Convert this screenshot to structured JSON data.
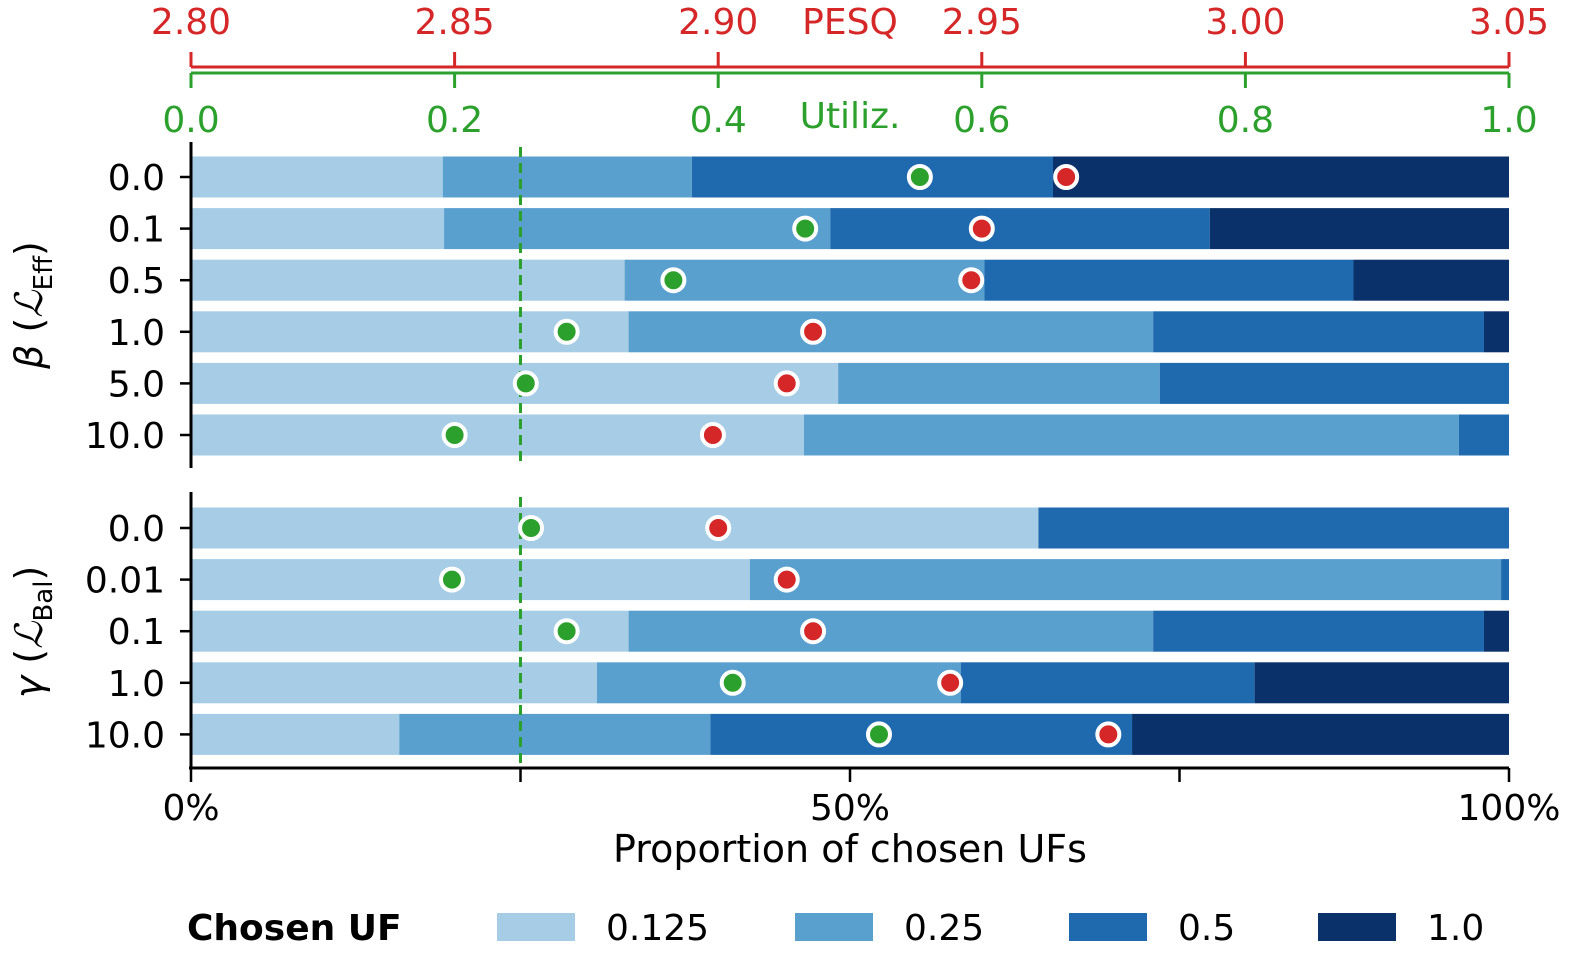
{
  "chart_data": {
    "type": "bar",
    "subtype": "stacked-horizontal-bar-with-markers",
    "xlabel": "Proportion of chosen UFs",
    "x_tick_labels": [
      "0%",
      "50%",
      "100%"
    ],
    "xlim": [
      0,
      1
    ],
    "top_axes": [
      {
        "name": "PESQ",
        "label": "PESQ",
        "color": "#d62728",
        "range": [
          2.8,
          3.05
        ],
        "ticks": [
          "2.80",
          "2.85",
          "2.90",
          "2.95",
          "3.00",
          "3.05"
        ]
      },
      {
        "name": "Utiliz.",
        "label": "Utiliz.",
        "color": "#2ca02c",
        "range": [
          0.0,
          1.0
        ],
        "ticks": [
          "0.0",
          "0.2",
          "0.4",
          "0.6",
          "0.8",
          "1.0"
        ]
      }
    ],
    "reference_line": {
      "axis": "x",
      "value": 0.25,
      "style": "dashed",
      "color": "#2ca02c"
    },
    "legend": {
      "title": "Chosen UF",
      "position": "bottom",
      "entries": [
        {
          "label": "0.125",
          "color": "#a6cde5"
        },
        {
          "label": "0.25",
          "color": "#5aa0cf"
        },
        {
          "label": "0.5",
          "color": "#1f6aaf"
        },
        {
          "label": "1.0",
          "color": "#0b316a"
        }
      ]
    },
    "groups": [
      {
        "name": "beta",
        "label_symbol": "β",
        "label_loss": "ℒ",
        "label_sub": "Eff",
        "rows": [
          {
            "label": "0.0",
            "proportions": [
              0.191,
              0.189,
              0.274,
              0.346
            ],
            "utilization": 0.553,
            "pesq": 2.966
          },
          {
            "label": "0.1",
            "proportions": [
              0.192,
              0.293,
              0.288,
              0.227
            ],
            "utilization": 0.466,
            "pesq": 2.95
          },
          {
            "label": "0.5",
            "proportions": [
              0.329,
              0.273,
              0.28,
              0.118
            ],
            "utilization": 0.366,
            "pesq": 2.948
          },
          {
            "label": "1.0",
            "proportions": [
              0.332,
              0.398,
              0.251,
              0.019
            ],
            "utilization": 0.285,
            "pesq": 2.918
          },
          {
            "label": "5.0",
            "proportions": [
              0.491,
              0.244,
              0.265,
              0.0
            ],
            "utilization": 0.254,
            "pesq": 2.913
          },
          {
            "label": "10.0",
            "proportions": [
              0.465,
              0.497,
              0.038,
              0.0
            ],
            "utilization": 0.2,
            "pesq": 2.899
          }
        ]
      },
      {
        "name": "gamma",
        "label_symbol": "γ",
        "label_loss": "ℒ",
        "label_sub": "Bal",
        "rows": [
          {
            "label": "0.0",
            "proportions": [
              0.643,
              0.0,
              0.357,
              0.0
            ],
            "utilization": 0.258,
            "pesq": 2.9
          },
          {
            "label": "0.01",
            "proportions": [
              0.424,
              0.57,
              0.006,
              0.0
            ],
            "utilization": 0.198,
            "pesq": 2.913
          },
          {
            "label": "0.1",
            "proportions": [
              0.332,
              0.398,
              0.251,
              0.019
            ],
            "utilization": 0.285,
            "pesq": 2.918
          },
          {
            "label": "1.0",
            "proportions": [
              0.308,
              0.276,
              0.223,
              0.193
            ],
            "utilization": 0.411,
            "pesq": 2.944
          },
          {
            "label": "10.0",
            "proportions": [
              0.158,
              0.236,
              0.32,
              0.286
            ],
            "utilization": 0.522,
            "pesq": 2.974
          }
        ]
      }
    ]
  }
}
